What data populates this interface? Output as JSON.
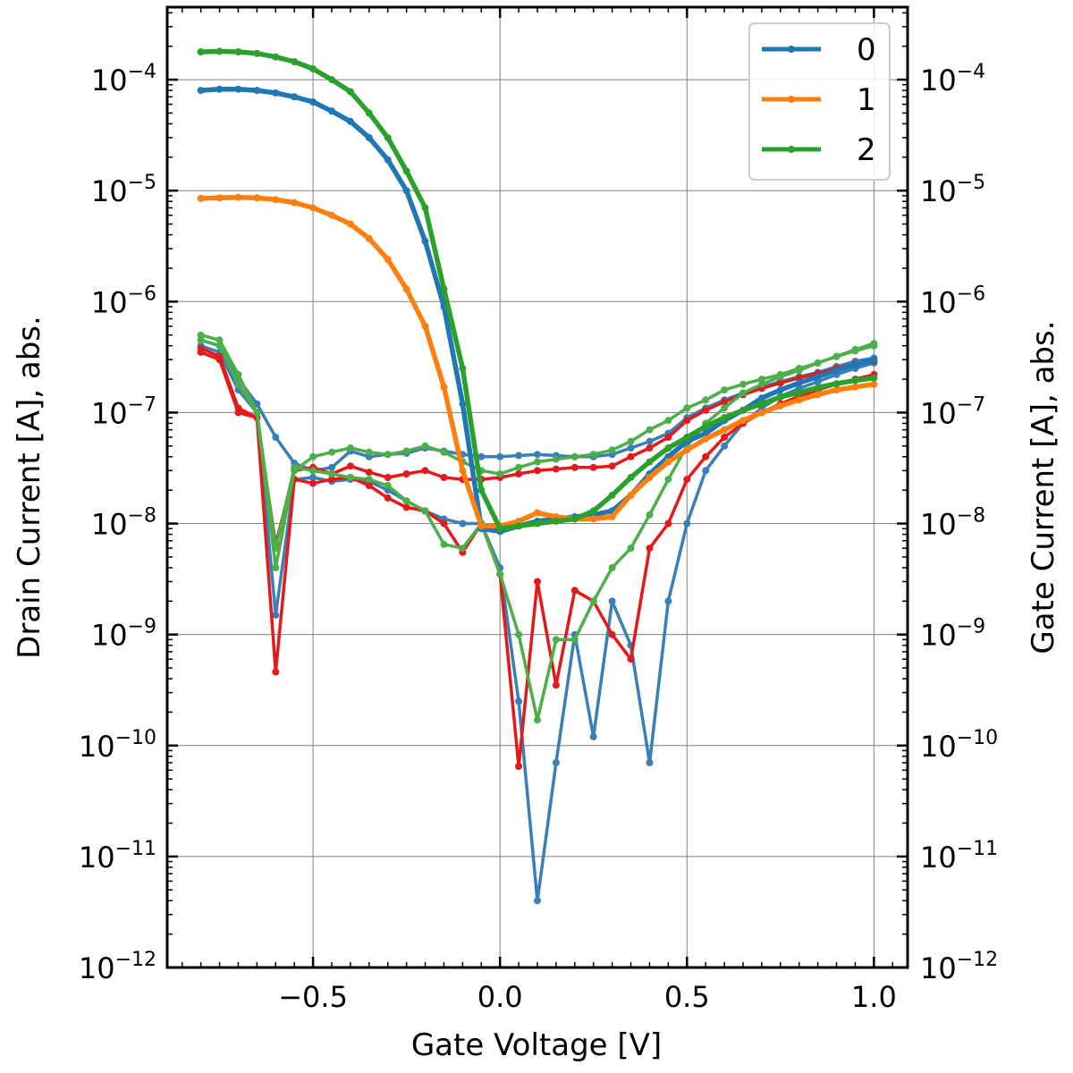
{
  "chart_data": {
    "type": "line",
    "xlabel": "Gate Voltage [V]",
    "ylabel": "Drain Current [A], abs.",
    "ylabel_right": "Gate Current [A], abs.",
    "xlim": [
      -0.89,
      1.09
    ],
    "ylim": [
      1e-12,
      0.00045
    ],
    "yscale": "log",
    "grid": true,
    "legend_position": "top-right",
    "x_ticks": [
      {
        "value": -0.5,
        "label": "−0.5"
      },
      {
        "value": 0.0,
        "label": "0.0"
      },
      {
        "value": 0.5,
        "label": "0.5"
      },
      {
        "value": 1.0,
        "label": "1.0"
      }
    ],
    "y_ticks": [
      {
        "value": 1e-12,
        "base": "10",
        "exp": "−12"
      },
      {
        "value": 1e-11,
        "base": "10",
        "exp": "−11"
      },
      {
        "value": 1e-10,
        "base": "10",
        "exp": "−10"
      },
      {
        "value": 1e-09,
        "base": "10",
        "exp": "−9"
      },
      {
        "value": 1e-08,
        "base": "10",
        "exp": "−8"
      },
      {
        "value": 1e-07,
        "base": "10",
        "exp": "−7"
      },
      {
        "value": 1e-06,
        "base": "10",
        "exp": "−6"
      },
      {
        "value": 1e-05,
        "base": "10",
        "exp": "−5"
      },
      {
        "value": 0.0001,
        "base": "10",
        "exp": "−4"
      }
    ],
    "x": [
      -0.8,
      -0.75,
      -0.7,
      -0.65,
      -0.6,
      -0.55,
      -0.5,
      -0.45,
      -0.4,
      -0.35,
      -0.3,
      -0.25,
      -0.2,
      -0.15,
      -0.1,
      -0.05,
      0.0,
      0.05,
      0.1,
      0.15,
      0.2,
      0.25,
      0.3,
      0.35,
      0.4,
      0.45,
      0.5,
      0.55,
      0.6,
      0.65,
      0.7,
      0.75,
      0.8,
      0.85,
      0.9,
      0.95,
      1.0
    ],
    "drain_series": [
      {
        "name": "0",
        "color": "#1f77b4",
        "values": [
          8e-05,
          8.2e-05,
          8.2e-05,
          8e-05,
          7.6e-05,
          7e-05,
          6.3e-05,
          5.2e-05,
          4.2e-05,
          3e-05,
          1.9e-05,
          1e-05,
          3.5e-06,
          9e-07,
          1.2e-07,
          9e-09,
          8.5e-09,
          9.5e-09,
          1.05e-08,
          1.1e-08,
          1.15e-08,
          1.2e-08,
          1.3e-08,
          1.8e-08,
          2.8e-08,
          4e-08,
          5.5e-08,
          6.5e-08,
          8.5e-08,
          1.05e-07,
          1.35e-07,
          1.6e-07,
          1.85e-07,
          2.1e-07,
          2.4e-07,
          2.7e-07,
          3e-07
        ]
      },
      {
        "name": "1",
        "color": "#ff7f0e",
        "values": [
          8.5e-06,
          8.6e-06,
          8.7e-06,
          8.6e-06,
          8.3e-06,
          7.8e-06,
          7e-06,
          6e-06,
          5e-06,
          3.7e-06,
          2.4e-06,
          1.3e-06,
          6e-07,
          1.7e-07,
          3e-08,
          9.5e-09,
          9.5e-09,
          1.05e-08,
          1.25e-08,
          1.15e-08,
          1.1e-08,
          1.1e-08,
          1.15e-08,
          1.8e-08,
          2.6e-08,
          3.6e-08,
          4.6e-08,
          5.8e-08,
          7e-08,
          8.5e-08,
          1e-07,
          1.15e-07,
          1.3e-07,
          1.45e-07,
          1.6e-07,
          1.7e-07,
          1.8e-07
        ]
      },
      {
        "name": "2",
        "color": "#2ca02c",
        "values": [
          0.000178,
          0.00018,
          0.000178,
          0.000172,
          0.00016,
          0.000145,
          0.000125,
          0.0001,
          7.8e-05,
          5e-05,
          3e-05,
          1.5e-05,
          7e-06,
          1.3e-06,
          2.5e-07,
          2e-08,
          9e-09,
          9.5e-09,
          1e-08,
          1.05e-08,
          1.1e-08,
          1.3e-08,
          1.8e-08,
          2.6e-08,
          3.6e-08,
          4.8e-08,
          6e-08,
          7.5e-08,
          9e-08,
          1.05e-07,
          1.2e-07,
          1.38e-07,
          1.52e-07,
          1.68e-07,
          1.82e-07,
          1.95e-07,
          2.05e-07
        ]
      }
    ],
    "gate_series": [
      {
        "color": "#3a7fb8",
        "values": [
          4.5e-07,
          4e-07,
          2e-07,
          1.2e-07,
          6e-08,
          3.5e-08,
          3e-08,
          3.2e-08,
          4.5e-08,
          4e-08,
          4.2e-08,
          4.3e-08,
          4.8e-08,
          4.5e-08,
          4.2e-08,
          4e-08,
          4e-08,
          4.1e-08,
          4.2e-08,
          4.1e-08,
          4e-08,
          4e-08,
          4.2e-08,
          4.8e-08,
          5.5e-08,
          6.5e-08,
          9e-08,
          1.1e-07,
          1.3e-07,
          1.5e-07,
          1.7e-07,
          1.9e-07,
          2.1e-07,
          2.3e-07,
          2.6e-07,
          2.9e-07,
          3.1e-07
        ]
      },
      {
        "color": "#3a7fb8",
        "values": [
          4e-07,
          3.5e-07,
          1.6e-07,
          1e-07,
          1.5e-09,
          2.5e-08,
          2.6e-08,
          2.4e-08,
          2.5e-08,
          2.4e-08,
          2e-08,
          1.6e-08,
          1.3e-08,
          1.1e-08,
          1e-08,
          1e-08,
          4e-09,
          2.5e-10,
          4e-12,
          7e-11,
          1e-09,
          1.2e-10,
          2e-09,
          8e-10,
          7e-11,
          2e-09,
          1e-08,
          3e-08,
          5e-08,
          8e-08,
          1.1e-07,
          1.4e-07,
          1.65e-07,
          1.9e-07,
          2.2e-07,
          2.5e-07,
          2.8e-07
        ]
      },
      {
        "color": "#e31a1c",
        "values": [
          3.5e-07,
          3e-07,
          1e-07,
          9e-08,
          6.5e-09,
          3e-08,
          3.2e-08,
          2.8e-08,
          3.3e-08,
          2.9e-08,
          2.6e-08,
          2.8e-08,
          3e-08,
          2.6e-08,
          2.5e-08,
          2.5e-08,
          2.6e-08,
          2.8e-08,
          3e-08,
          3.1e-08,
          3.2e-08,
          3.2e-08,
          3.3e-08,
          4e-08,
          4.8e-08,
          6e-08,
          8.5e-08,
          1.05e-07,
          1.25e-07,
          1.45e-07,
          1.65e-07,
          1.85e-07,
          2.05e-07,
          2.25e-07,
          2.5e-07,
          2.75e-07,
          2.9e-07
        ]
      },
      {
        "color": "#e31a1c",
        "values": [
          3.8e-07,
          3.2e-07,
          1.1e-07,
          9e-08,
          4.6e-10,
          2.5e-08,
          2.3e-08,
          2.5e-08,
          2.6e-08,
          2.2e-08,
          1.7e-08,
          1.4e-08,
          1.3e-08,
          1e-08,
          5.5e-09,
          1e-08,
          3.5e-09,
          6.5e-11,
          3e-09,
          3.5e-10,
          2.5e-09,
          2e-09,
          1e-09,
          6e-10,
          6e-09,
          1e-08,
          2.5e-08,
          4e-08,
          6e-08,
          8e-08,
          1e-07,
          1.2e-07,
          1.4e-07,
          1.6e-07,
          1.8e-07,
          2e-07,
          2.2e-07
        ]
      },
      {
        "color": "#4daf4a",
        "values": [
          5e-07,
          4.5e-07,
          2.2e-07,
          1e-07,
          4e-09,
          3e-08,
          4e-08,
          4.4e-08,
          4.8e-08,
          4.4e-08,
          4.2e-08,
          4.5e-08,
          5e-08,
          4.4e-08,
          3.6e-08,
          3e-08,
          2.8e-08,
          3.2e-08,
          3.6e-08,
          3.8e-08,
          4e-08,
          4.2e-08,
          4.6e-08,
          5.5e-08,
          7e-08,
          8.5e-08,
          1.1e-07,
          1.3e-07,
          1.6e-07,
          1.8e-07,
          2e-07,
          2.2e-07,
          2.5e-07,
          2.8e-07,
          3.2e-07,
          3.6e-07,
          4e-07
        ]
      },
      {
        "color": "#4daf4a",
        "values": [
          4.5e-07,
          4e-07,
          1.8e-07,
          1e-07,
          6e-09,
          3.2e-08,
          3e-08,
          2.8e-08,
          2.6e-08,
          2.5e-08,
          2.2e-08,
          1.6e-08,
          1.3e-08,
          6.5e-09,
          6e-09,
          1e-08,
          3.5e-09,
          1e-09,
          1.7e-10,
          9e-10,
          9e-10,
          2e-09,
          4e-09,
          6e-09,
          1.2e-08,
          2.5e-08,
          5e-08,
          8e-08,
          1.1e-07,
          1.5e-07,
          1.8e-07,
          2.1e-07,
          2.4e-07,
          2.8e-07,
          3.2e-07,
          3.7e-07,
          4.2e-07
        ]
      }
    ],
    "legend": [
      {
        "label": "0",
        "color": "#1f77b4"
      },
      {
        "label": "1",
        "color": "#ff7f0e"
      },
      {
        "label": "2",
        "color": "#2ca02c"
      }
    ]
  }
}
